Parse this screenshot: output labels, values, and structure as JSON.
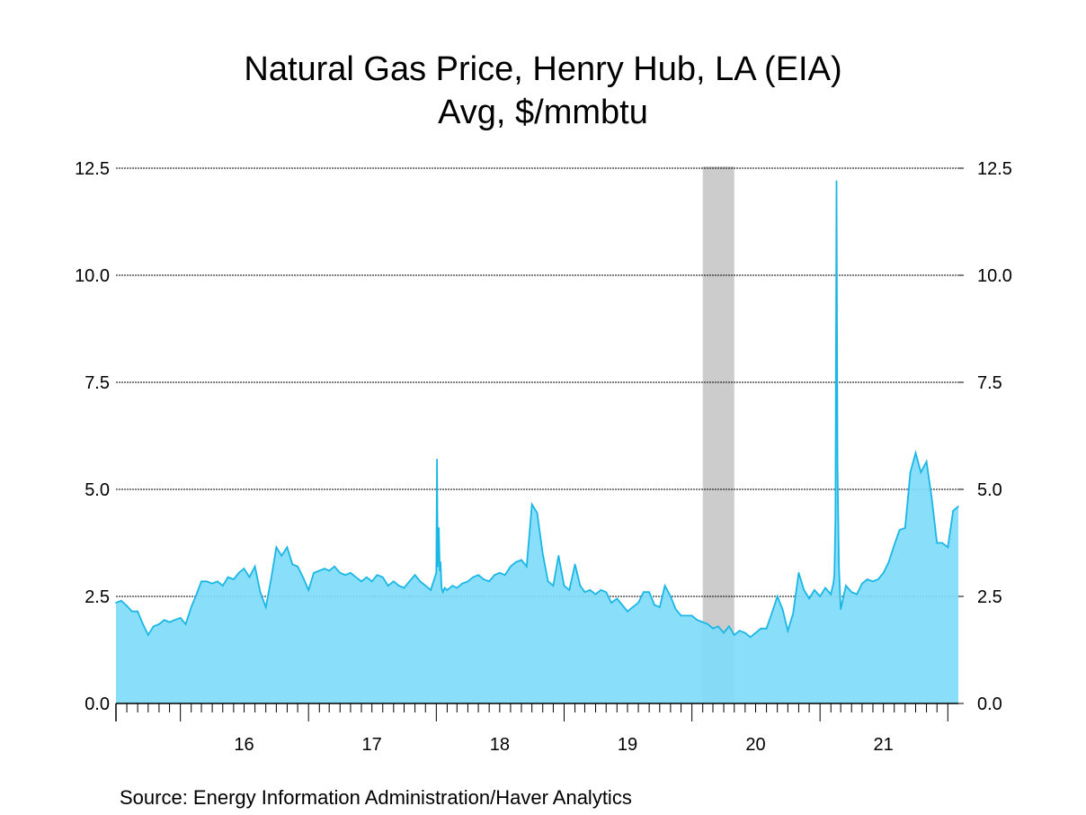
{
  "title": "Natural Gas Price, Henry Hub, LA (EIA)",
  "subtitle": "Avg, $/mmbtu",
  "source": "Source:  Energy Information Administration/Haver Analytics",
  "colors": {
    "fill": "#7fdcf8",
    "line": "#1ab7e6",
    "recession": "#cccccc",
    "grid": "#000000"
  },
  "chart_data": {
    "type": "area",
    "xlabel": "",
    "ylabel": "",
    "ylim": [
      0,
      12.5
    ],
    "yticks": [
      "0.0",
      "2.5",
      "5.0",
      "7.5",
      "10.0",
      "12.5"
    ],
    "xticks": [
      "16",
      "17",
      "18",
      "19",
      "20",
      "21"
    ],
    "grid": true,
    "recession_shading": {
      "start": "2020-02",
      "end": "2020-04"
    },
    "series": [
      {
        "x": [
          "2015-07-01",
          "2015-07-16",
          "2015-08-01",
          "2015-08-16",
          "2015-09-01",
          "2015-09-16",
          "2015-10-01",
          "2015-10-16",
          "2015-11-01",
          "2015-11-16",
          "2015-12-01",
          "2015-12-16",
          "2016-01-01",
          "2016-01-16",
          "2016-02-01",
          "2016-02-16",
          "2016-03-01",
          "2016-03-16",
          "2016-04-01",
          "2016-04-16",
          "2016-05-01",
          "2016-05-16",
          "2016-06-01",
          "2016-06-16",
          "2016-07-01",
          "2016-07-16",
          "2016-08-01",
          "2016-08-16",
          "2016-09-01",
          "2016-09-16",
          "2016-10-01",
          "2016-10-16",
          "2016-11-01",
          "2016-11-16",
          "2016-12-01",
          "2016-12-16",
          "2017-01-01",
          "2017-01-16",
          "2017-02-01",
          "2017-02-16",
          "2017-03-01",
          "2017-03-16",
          "2017-04-01",
          "2017-04-16",
          "2017-05-01",
          "2017-05-16",
          "2017-06-01",
          "2017-06-16",
          "2017-07-01",
          "2017-07-16",
          "2017-08-01",
          "2017-08-16",
          "2017-09-01",
          "2017-09-16",
          "2017-10-01",
          "2017-10-16",
          "2017-11-01",
          "2017-11-16",
          "2017-12-01",
          "2017-12-16",
          "2018-01-01",
          "2018-01-03",
          "2018-01-05",
          "2018-01-08",
          "2018-01-11",
          "2018-01-13",
          "2018-01-16",
          "2018-01-20",
          "2018-01-25",
          "2018-02-01",
          "2018-02-16",
          "2018-03-01",
          "2018-03-16",
          "2018-04-01",
          "2018-04-16",
          "2018-05-01",
          "2018-05-16",
          "2018-06-01",
          "2018-06-16",
          "2018-07-01",
          "2018-07-16",
          "2018-08-01",
          "2018-08-16",
          "2018-09-01",
          "2018-09-16",
          "2018-10-01",
          "2018-10-16",
          "2018-11-01",
          "2018-11-16",
          "2018-12-01",
          "2018-12-16",
          "2019-01-01",
          "2019-01-16",
          "2019-02-01",
          "2019-02-16",
          "2019-03-01",
          "2019-03-16",
          "2019-04-01",
          "2019-04-16",
          "2019-05-01",
          "2019-05-16",
          "2019-06-01",
          "2019-06-16",
          "2019-07-01",
          "2019-07-16",
          "2019-08-01",
          "2019-08-16",
          "2019-09-01",
          "2019-09-16",
          "2019-10-01",
          "2019-10-16",
          "2019-11-01",
          "2019-11-16",
          "2019-12-01",
          "2019-12-16",
          "2020-01-01",
          "2020-01-16",
          "2020-02-01",
          "2020-02-16",
          "2020-03-01",
          "2020-03-16",
          "2020-04-01",
          "2020-04-16",
          "2020-05-01",
          "2020-05-16",
          "2020-06-01",
          "2020-06-16",
          "2020-07-01",
          "2020-07-16",
          "2020-08-01",
          "2020-08-16",
          "2020-09-01",
          "2020-09-16",
          "2020-10-01",
          "2020-10-16",
          "2020-11-01",
          "2020-11-16",
          "2020-12-01",
          "2020-12-16",
          "2021-01-01",
          "2021-01-16",
          "2021-02-01",
          "2021-02-08",
          "2021-02-11",
          "2021-02-14",
          "2021-02-17",
          "2021-02-20",
          "2021-02-24",
          "2021-03-01",
          "2021-03-16",
          "2021-04-01",
          "2021-04-16",
          "2021-05-01",
          "2021-05-16",
          "2021-06-01",
          "2021-06-16",
          "2021-07-01",
          "2021-07-16",
          "2021-08-01",
          "2021-08-16",
          "2021-09-01",
          "2021-09-16",
          "2021-10-01",
          "2021-10-16",
          "2021-11-01",
          "2021-11-16",
          "2021-12-01",
          "2021-12-16",
          "2022-01-01",
          "2022-01-16",
          "2022-01-31"
        ],
        "values": [
          2.35,
          2.4,
          2.28,
          2.15,
          2.15,
          1.85,
          1.6,
          1.8,
          1.85,
          1.95,
          1.9,
          1.95,
          2.0,
          1.85,
          2.25,
          2.55,
          2.85,
          2.85,
          2.8,
          2.85,
          2.75,
          2.95,
          2.9,
          3.05,
          3.15,
          2.95,
          3.2,
          2.6,
          2.25,
          2.9,
          3.65,
          3.45,
          3.65,
          3.25,
          3.2,
          2.95,
          2.65,
          3.05,
          3.1,
          3.15,
          3.1,
          3.2,
          3.05,
          3.0,
          3.05,
          2.95,
          2.85,
          2.95,
          2.85,
          3.0,
          2.95,
          2.75,
          2.85,
          2.75,
          2.7,
          2.85,
          3.0,
          2.85,
          2.75,
          2.65,
          3.05,
          5.7,
          3.2,
          4.1,
          3.1,
          3.3,
          2.7,
          2.6,
          2.7,
          2.65,
          2.75,
          2.7,
          2.8,
          2.85,
          2.95,
          3.0,
          2.9,
          2.85,
          3.0,
          3.05,
          3.0,
          3.2,
          3.3,
          3.35,
          3.2,
          4.65,
          4.45,
          3.5,
          2.85,
          2.75,
          3.45,
          2.75,
          2.65,
          3.25,
          2.75,
          2.6,
          2.65,
          2.55,
          2.65,
          2.6,
          2.35,
          2.45,
          2.3,
          2.15,
          2.25,
          2.35,
          2.6,
          2.6,
          2.3,
          2.25,
          2.75,
          2.5,
          2.2,
          2.05,
          2.05,
          2.05,
          1.95,
          1.9,
          1.85,
          1.75,
          1.8,
          1.65,
          1.8,
          1.6,
          1.7,
          1.65,
          1.55,
          1.65,
          1.75,
          1.75,
          2.1,
          2.5,
          2.2,
          1.7,
          2.1,
          3.05,
          2.65,
          2.45,
          2.65,
          2.5,
          2.7,
          2.55,
          2.8,
          3.0,
          4.3,
          12.2,
          5.5,
          3.2,
          2.2,
          2.75,
          2.6,
          2.55,
          2.8,
          2.9,
          2.85,
          2.9,
          3.05,
          3.3,
          3.7,
          4.05,
          4.1,
          5.4,
          5.85,
          5.4,
          5.65,
          4.8,
          3.75,
          3.75,
          3.65,
          4.5,
          4.6
        ]
      }
    ]
  }
}
